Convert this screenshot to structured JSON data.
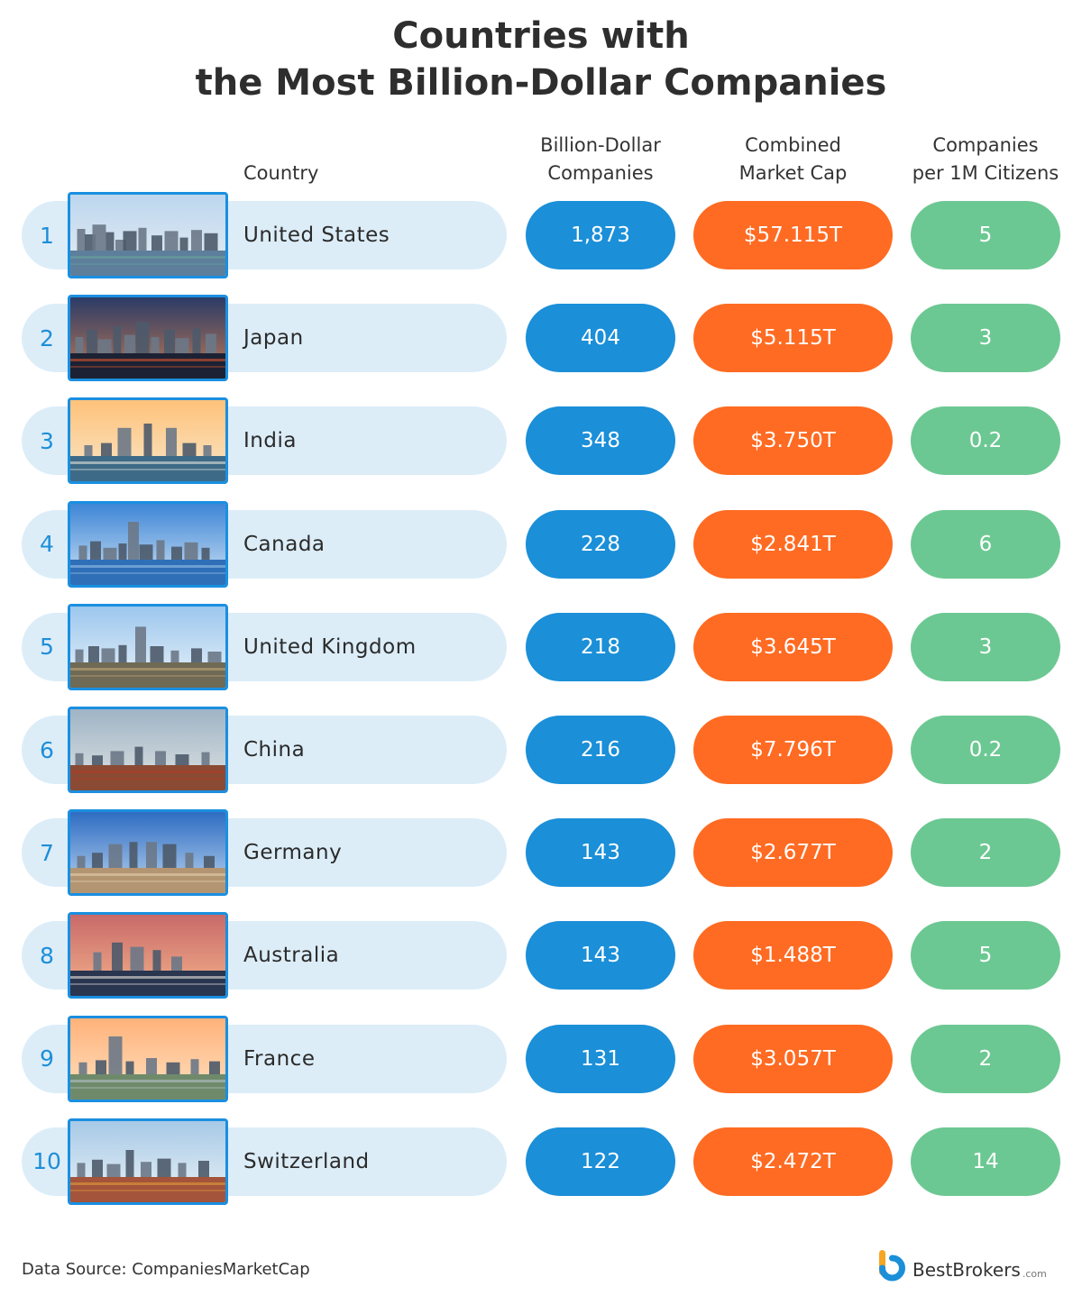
{
  "title": {
    "line1": "Countries with",
    "line2": "the Most Billion-Dollar Companies"
  },
  "headers": {
    "country": "Country",
    "companies": [
      "Billion-Dollar",
      "Companies"
    ],
    "market_cap": [
      "Combined",
      "Market Cap"
    ],
    "per_million": [
      "Companies",
      "per 1M Citizens"
    ]
  },
  "colors": {
    "rank": "#1e8ed8",
    "strip": "#dcedf8",
    "companies_pill": "#1b8fd8",
    "market_cap_pill": "#ff6b22",
    "per_million_pill": "#6cc892",
    "photo_border": "#1a8fe0"
  },
  "rows": [
    {
      "rank": "1",
      "country": "United States",
      "companies": "1,873",
      "market_cap": "$57.115T",
      "per_million": "5"
    },
    {
      "rank": "2",
      "country": "Japan",
      "companies": "404",
      "market_cap": "$5.115T",
      "per_million": "3"
    },
    {
      "rank": "3",
      "country": "India",
      "companies": "348",
      "market_cap": "$3.750T",
      "per_million": "0.2"
    },
    {
      "rank": "4",
      "country": "Canada",
      "companies": "228",
      "market_cap": "$2.841T",
      "per_million": "6"
    },
    {
      "rank": "5",
      "country": "United Kingdom",
      "companies": "218",
      "market_cap": "$3.645T",
      "per_million": "3"
    },
    {
      "rank": "6",
      "country": "China",
      "companies": "216",
      "market_cap": "$7.796T",
      "per_million": "0.2"
    },
    {
      "rank": "7",
      "country": "Germany",
      "companies": "143",
      "market_cap": "$2.677T",
      "per_million": "2"
    },
    {
      "rank": "8",
      "country": "Australia",
      "companies": "143",
      "market_cap": "$1.488T",
      "per_million": "5"
    },
    {
      "rank": "9",
      "country": "France",
      "companies": "131",
      "market_cap": "$3.057T",
      "per_million": "2"
    },
    {
      "rank": "10",
      "country": "Switzerland",
      "companies": "122",
      "market_cap": "$2.472T",
      "per_million": "14"
    }
  ],
  "chart_data": {
    "type": "table",
    "title": "Countries with the Most Billion-Dollar Companies",
    "columns": [
      "Country",
      "Billion-Dollar Companies",
      "Combined Market Cap",
      "Companies per 1M Citizens"
    ],
    "rows": [
      [
        "United States",
        1873,
        "$57.115T",
        5
      ],
      [
        "Japan",
        404,
        "$5.115T",
        3
      ],
      [
        "India",
        348,
        "$3.750T",
        0.2
      ],
      [
        "Canada",
        228,
        "$2.841T",
        6
      ],
      [
        "United Kingdom",
        218,
        "$3.645T",
        3
      ],
      [
        "China",
        216,
        "$7.796T",
        0.2
      ],
      [
        "Germany",
        143,
        "$2.677T",
        2
      ],
      [
        "Australia",
        143,
        "$1.488T",
        5
      ],
      [
        "France",
        131,
        "$3.057T",
        2
      ],
      [
        "Switzerland",
        122,
        "$2.472T",
        14
      ]
    ]
  },
  "footer": {
    "source": "Data Source: CompaniesMarketCap",
    "brand_name": "BestBrokers",
    "brand_domain": ".com"
  }
}
